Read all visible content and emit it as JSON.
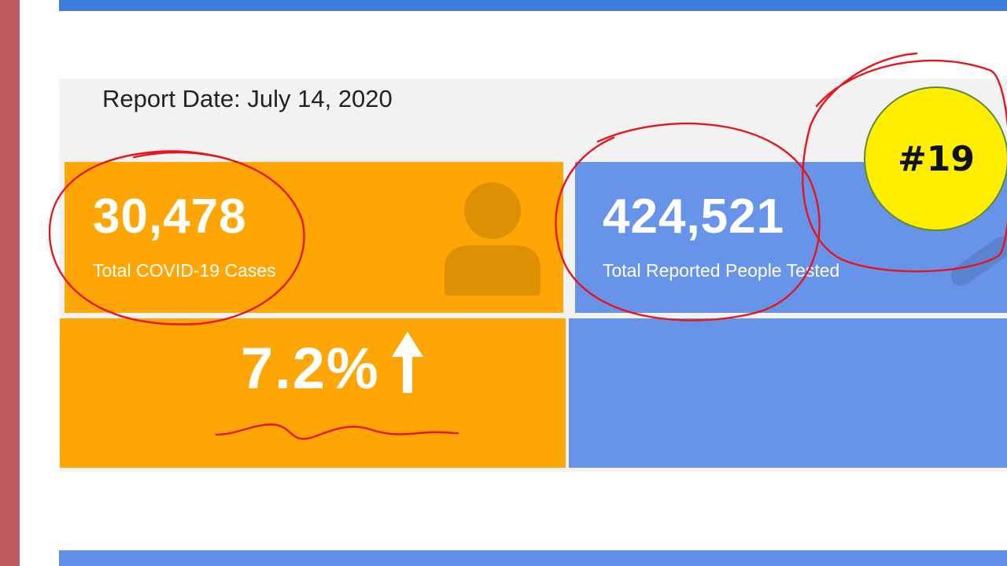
{
  "report": {
    "date_label": "Report Date: July 14, 2020"
  },
  "cases": {
    "value": "30,478",
    "label": "Total COVID-19 Cases",
    "icon": "person-icon",
    "color": "#fda606"
  },
  "tested": {
    "value": "424,521",
    "label": "Total Reported People Tested",
    "icon": "test-tube-icon",
    "color": "#6794e9"
  },
  "positivity": {
    "value": "7.2%",
    "trend_icon": "arrow-up-icon"
  },
  "badge": {
    "text": "#19",
    "color": "#ffee00"
  },
  "annotation_color": "#e8141c"
}
